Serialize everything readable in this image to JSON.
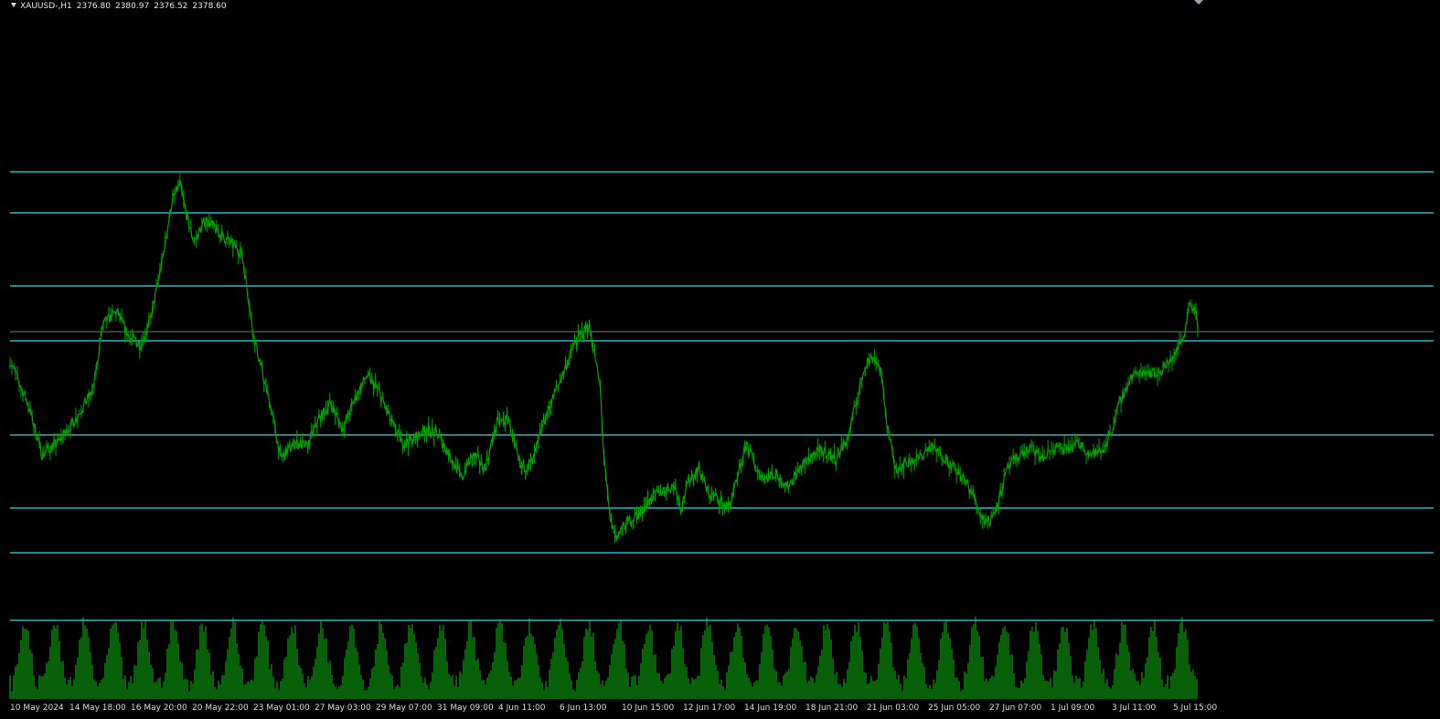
{
  "header": {
    "symbol": "XAUUSD-,H1",
    "open": "2376.80",
    "high": "2380.97",
    "low": "2376.52",
    "close": "2378.60"
  },
  "colors": {
    "background": "#000000",
    "candle": "#00a400",
    "volume": "#0c8a0c",
    "level_line": "#18bcc9",
    "bid_line": "#7a7a7a",
    "axis_text": "#dcdcdc"
  },
  "chart_data": {
    "type": "line",
    "timeframe": "H1",
    "x_tick_labels": [
      "10 May 2024",
      "14 May 18:00",
      "16 May 20:00",
      "20 May 22:00",
      "23 May 01:00",
      "27 May 03:00",
      "29 May 07:00",
      "31 May 09:00",
      "4 Jun 11:00",
      "6 Jun 13:00",
      "10 Jun 15:00",
      "12 Jun 17:00",
      "14 Jun 19:00",
      "18 Jun 21:00",
      "21 Jun 03:00",
      "25 Jun 05:00",
      "27 Jun 07:00",
      "1 Jul 09:00",
      "3 Jul 11:00",
      "5 Jul 15:00"
    ],
    "price_path": [
      [
        0,
        2360
      ],
      [
        0.015,
        2338
      ],
      [
        0.027,
        2312
      ],
      [
        0.04,
        2318
      ],
      [
        0.055,
        2330
      ],
      [
        0.07,
        2345
      ],
      [
        0.078,
        2378
      ],
      [
        0.09,
        2385
      ],
      [
        0.1,
        2372
      ],
      [
        0.11,
        2368
      ],
      [
        0.118,
        2380
      ],
      [
        0.128,
        2410
      ],
      [
        0.136,
        2440
      ],
      [
        0.143,
        2450
      ],
      [
        0.148,
        2435
      ],
      [
        0.155,
        2420
      ],
      [
        0.165,
        2432
      ],
      [
        0.175,
        2425
      ],
      [
        0.185,
        2420
      ],
      [
        0.195,
        2415
      ],
      [
        0.2,
        2395
      ],
      [
        0.205,
        2373
      ],
      [
        0.213,
        2352
      ],
      [
        0.22,
        2335
      ],
      [
        0.228,
        2310
      ],
      [
        0.24,
        2318
      ],
      [
        0.25,
        2316
      ],
      [
        0.26,
        2330
      ],
      [
        0.27,
        2338
      ],
      [
        0.28,
        2325
      ],
      [
        0.29,
        2340
      ],
      [
        0.3,
        2352
      ],
      [
        0.31,
        2345
      ],
      [
        0.32,
        2330
      ],
      [
        0.33,
        2318
      ],
      [
        0.34,
        2320
      ],
      [
        0.35,
        2325
      ],
      [
        0.36,
        2322
      ],
      [
        0.37,
        2312
      ],
      [
        0.38,
        2300
      ],
      [
        0.39,
        2312
      ],
      [
        0.4,
        2305
      ],
      [
        0.41,
        2328
      ],
      [
        0.42,
        2330
      ],
      [
        0.425,
        2315
      ],
      [
        0.43,
        2305
      ],
      [
        0.44,
        2308
      ],
      [
        0.45,
        2330
      ],
      [
        0.46,
        2345
      ],
      [
        0.47,
        2360
      ],
      [
        0.475,
        2368
      ],
      [
        0.48,
        2372
      ],
      [
        0.487,
        2378
      ],
      [
        0.492,
        2364
      ],
      [
        0.497,
        2345
      ],
      [
        0.5,
        2310
      ],
      [
        0.505,
        2280
      ],
      [
        0.51,
        2270
      ],
      [
        0.52,
        2278
      ],
      [
        0.53,
        2282
      ],
      [
        0.54,
        2290
      ],
      [
        0.55,
        2294
      ],
      [
        0.56,
        2296
      ],
      [
        0.565,
        2285
      ],
      [
        0.572,
        2300
      ],
      [
        0.58,
        2305
      ],
      [
        0.588,
        2292
      ],
      [
        0.595,
        2290
      ],
      [
        0.605,
        2285
      ],
      [
        0.612,
        2298
      ],
      [
        0.62,
        2318
      ],
      [
        0.628,
        2305
      ],
      [
        0.635,
        2300
      ],
      [
        0.645,
        2302
      ],
      [
        0.655,
        2296
      ],
      [
        0.665,
        2305
      ],
      [
        0.675,
        2312
      ],
      [
        0.685,
        2314
      ],
      [
        0.695,
        2310
      ],
      [
        0.705,
        2320
      ],
      [
        0.715,
        2345
      ],
      [
        0.72,
        2358
      ],
      [
        0.727,
        2362
      ],
      [
        0.733,
        2355
      ],
      [
        0.738,
        2330
      ],
      [
        0.745,
        2305
      ],
      [
        0.755,
        2308
      ],
      [
        0.765,
        2310
      ],
      [
        0.775,
        2316
      ],
      [
        0.785,
        2312
      ],
      [
        0.795,
        2305
      ],
      [
        0.805,
        2298
      ],
      [
        0.812,
        2290
      ],
      [
        0.818,
        2280
      ],
      [
        0.825,
        2278
      ],
      [
        0.832,
        2288
      ],
      [
        0.84,
        2305
      ],
      [
        0.85,
        2312
      ],
      [
        0.86,
        2315
      ],
      [
        0.87,
        2310
      ],
      [
        0.88,
        2316
      ],
      [
        0.89,
        2314
      ],
      [
        0.9,
        2318
      ],
      [
        0.91,
        2312
      ],
      [
        0.92,
        2314
      ],
      [
        0.928,
        2325
      ],
      [
        0.935,
        2340
      ],
      [
        0.945,
        2352
      ],
      [
        0.955,
        2355
      ],
      [
        0.965,
        2353
      ],
      [
        0.975,
        2358
      ],
      [
        0.982,
        2365
      ],
      [
        0.988,
        2372
      ],
      [
        0.993,
        2390
      ],
      [
        0.998,
        2385
      ],
      [
        1.0,
        2378
      ]
    ],
    "horizontal_levels": 9,
    "grid": false,
    "volume_panel": true
  }
}
